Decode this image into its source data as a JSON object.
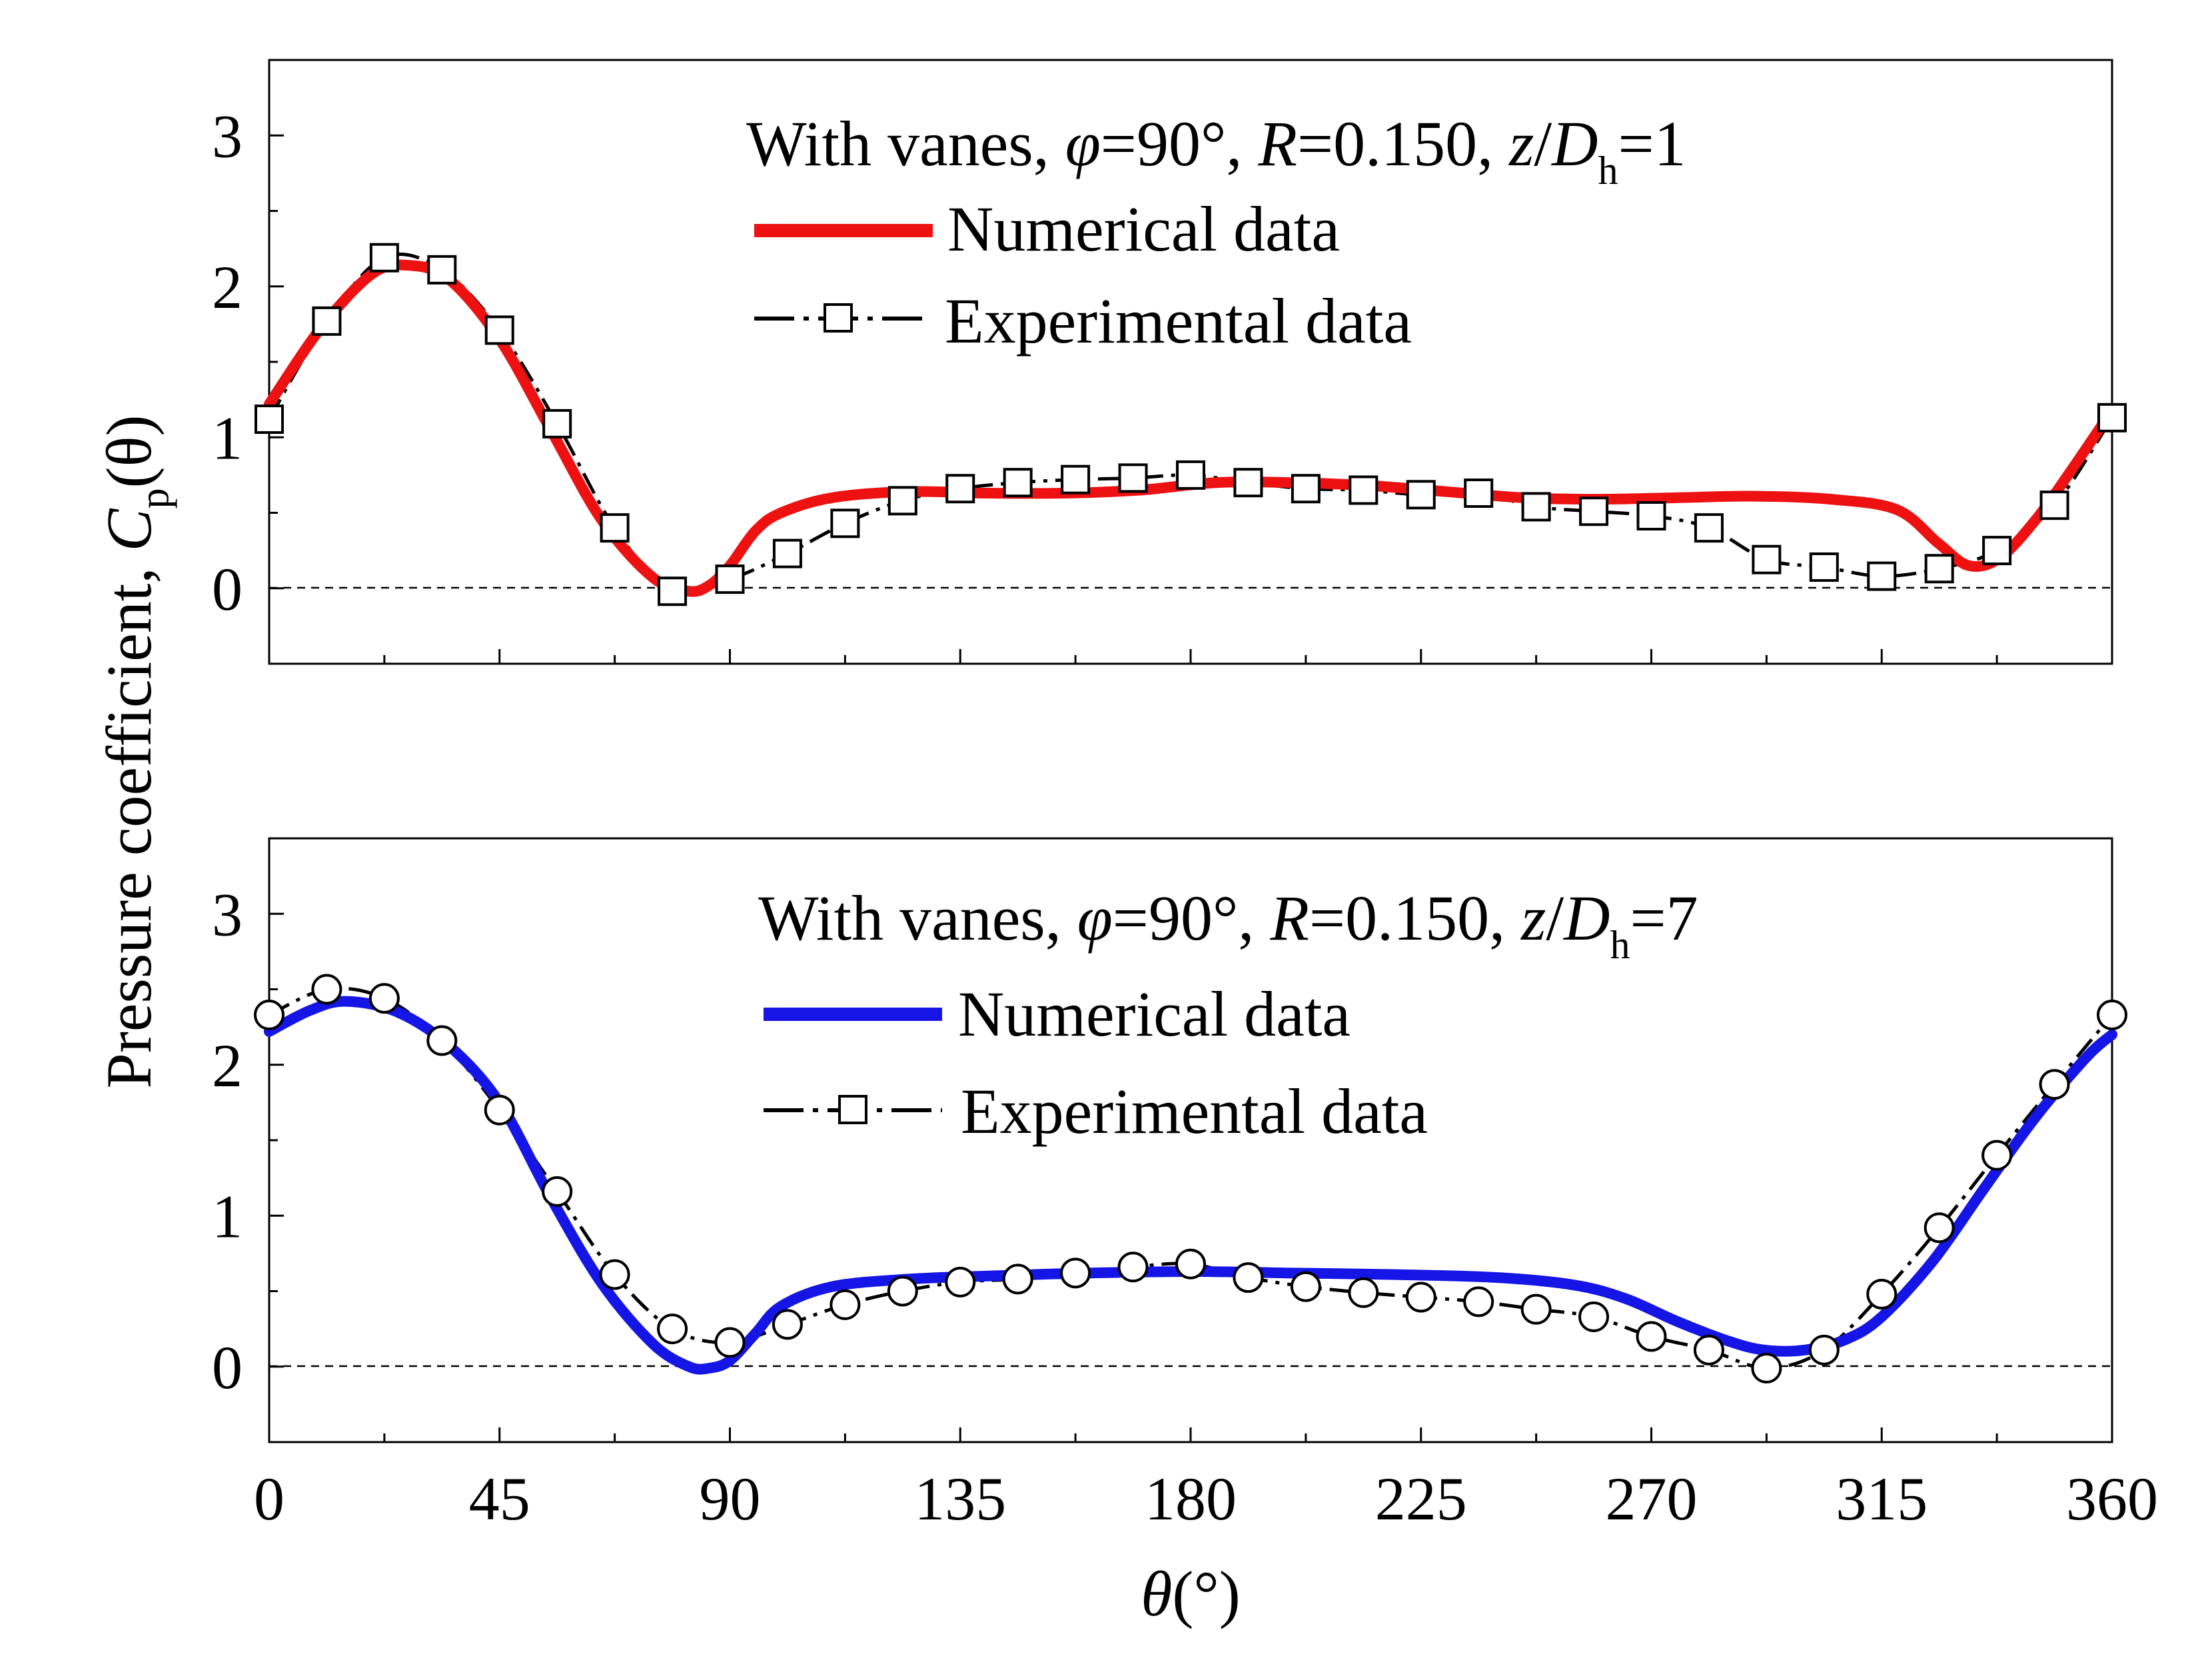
{
  "figure": {
    "y_axis_title_main": "Pressure coefficient, ",
    "y_axis_title_sym": "C",
    "y_axis_title_sub": "p",
    "y_axis_title_arg": "(θ)",
    "x_axis_title_sym": "θ",
    "x_axis_title_unit": "(°)"
  },
  "colors": {
    "top_numerical": "#ee1111",
    "bottom_numerical": "#1515e6",
    "experimental": "#000000",
    "zero_line": "#000000"
  },
  "chart_data": [
    {
      "type": "line",
      "panel": "top",
      "title_parts": [
        "With vanes, ",
        "φ",
        "=90°, ",
        "R",
        "=0.150, ",
        "z",
        "/",
        "D",
        "h",
        "=1"
      ],
      "legend": [
        "Numerical data",
        "Experimental data"
      ],
      "legend_position": "top-right",
      "xlim": [
        0,
        360
      ],
      "ylim": [
        -0.5,
        3.5
      ],
      "xticks": [
        0,
        45,
        90,
        135,
        180,
        225,
        270,
        315,
        360
      ],
      "yticks": [
        0,
        1,
        2,
        3
      ],
      "zero_reference_line": true,
      "series": [
        {
          "name": "Numerical data",
          "style": "thick-solid",
          "marker": "none",
          "x": [
            0,
            10,
            20,
            27,
            35,
            45,
            55,
            65,
            75,
            82,
            86,
            90,
            95,
            100,
            110,
            125,
            140,
            155,
            170,
            185,
            200,
            215,
            230,
            245,
            260,
            275,
            290,
            305,
            318,
            326,
            332,
            338,
            345,
            352,
            360
          ],
          "y": [
            1.22,
            1.72,
            2.08,
            2.14,
            2.05,
            1.65,
            1.05,
            0.45,
            0.07,
            -0.02,
            0.02,
            0.15,
            0.38,
            0.5,
            0.6,
            0.64,
            0.63,
            0.63,
            0.65,
            0.7,
            0.7,
            0.68,
            0.64,
            0.6,
            0.59,
            0.6,
            0.61,
            0.59,
            0.52,
            0.3,
            0.15,
            0.2,
            0.45,
            0.78,
            1.18
          ]
        },
        {
          "name": "Experimental data",
          "style": "dash-dot",
          "marker": "square",
          "x": [
            0,
            11.25,
            22.5,
            33.75,
            45,
            56.25,
            67.5,
            78.75,
            90,
            101.25,
            112.5,
            123.75,
            135,
            146.25,
            157.5,
            168.75,
            180,
            191.25,
            202.5,
            213.75,
            225,
            236.25,
            247.5,
            258.75,
            270,
            281.25,
            292.5,
            303.75,
            315,
            326.25,
            337.5,
            348.75,
            360
          ],
          "y": [
            1.12,
            1.77,
            2.19,
            2.11,
            1.71,
            1.09,
            0.4,
            -0.02,
            0.06,
            0.23,
            0.43,
            0.58,
            0.66,
            0.7,
            0.72,
            0.73,
            0.75,
            0.7,
            0.66,
            0.65,
            0.62,
            0.63,
            0.54,
            0.51,
            0.48,
            0.4,
            0.19,
            0.14,
            0.08,
            0.13,
            0.25,
            0.55,
            1.13
          ]
        }
      ]
    },
    {
      "type": "line",
      "panel": "bottom",
      "title_parts": [
        "With vanes, ",
        "φ",
        "=90°, ",
        "R",
        "=0.150, ",
        "z",
        "/",
        "D",
        "h",
        "=7"
      ],
      "legend": [
        "Numerical data",
        "Experimental data"
      ],
      "legend_position": "top-right",
      "xlim": [
        0,
        360
      ],
      "ylim": [
        -0.5,
        3.5
      ],
      "xticks": [
        0,
        45,
        90,
        135,
        180,
        225,
        270,
        315,
        360
      ],
      "yticks": [
        0,
        1,
        2,
        3
      ],
      "xlabel": "θ(°)",
      "zero_reference_line": true,
      "series": [
        {
          "name": "Numerical data",
          "style": "thick-solid",
          "marker": "none",
          "x": [
            0,
            8,
            15,
            25,
            35,
            45,
            55,
            65,
            75,
            82,
            86,
            90,
            95,
            100,
            110,
            125,
            140,
            160,
            180,
            200,
            220,
            240,
            255,
            265,
            275,
            285,
            292,
            300,
            308,
            315,
            325,
            335,
            345,
            355,
            360
          ],
          "y": [
            2.22,
            2.36,
            2.42,
            2.35,
            2.13,
            1.75,
            1.12,
            0.55,
            0.15,
            0.0,
            -0.01,
            0.04,
            0.22,
            0.4,
            0.53,
            0.58,
            0.6,
            0.62,
            0.63,
            0.62,
            0.61,
            0.59,
            0.54,
            0.45,
            0.3,
            0.17,
            0.11,
            0.11,
            0.18,
            0.33,
            0.7,
            1.18,
            1.65,
            2.05,
            2.2
          ]
        },
        {
          "name": "Experimental data",
          "style": "dash-dot",
          "marker": "circle",
          "x": [
            0,
            11.25,
            22.5,
            33.75,
            45,
            56.25,
            67.5,
            78.75,
            90,
            101.25,
            112.5,
            123.75,
            135,
            146.25,
            157.5,
            168.75,
            180,
            191.25,
            202.5,
            213.75,
            225,
            236.25,
            247.5,
            258.75,
            270,
            281.25,
            292.5,
            303.75,
            315,
            326.25,
            337.5,
            348.75,
            360
          ],
          "y": [
            2.33,
            2.5,
            2.44,
            2.16,
            1.7,
            1.16,
            0.61,
            0.25,
            0.16,
            0.28,
            0.41,
            0.5,
            0.56,
            0.58,
            0.62,
            0.66,
            0.68,
            0.59,
            0.53,
            0.49,
            0.46,
            0.43,
            0.38,
            0.33,
            0.2,
            0.11,
            -0.01,
            0.11,
            0.48,
            0.92,
            1.4,
            1.87,
            2.33
          ]
        }
      ]
    }
  ]
}
